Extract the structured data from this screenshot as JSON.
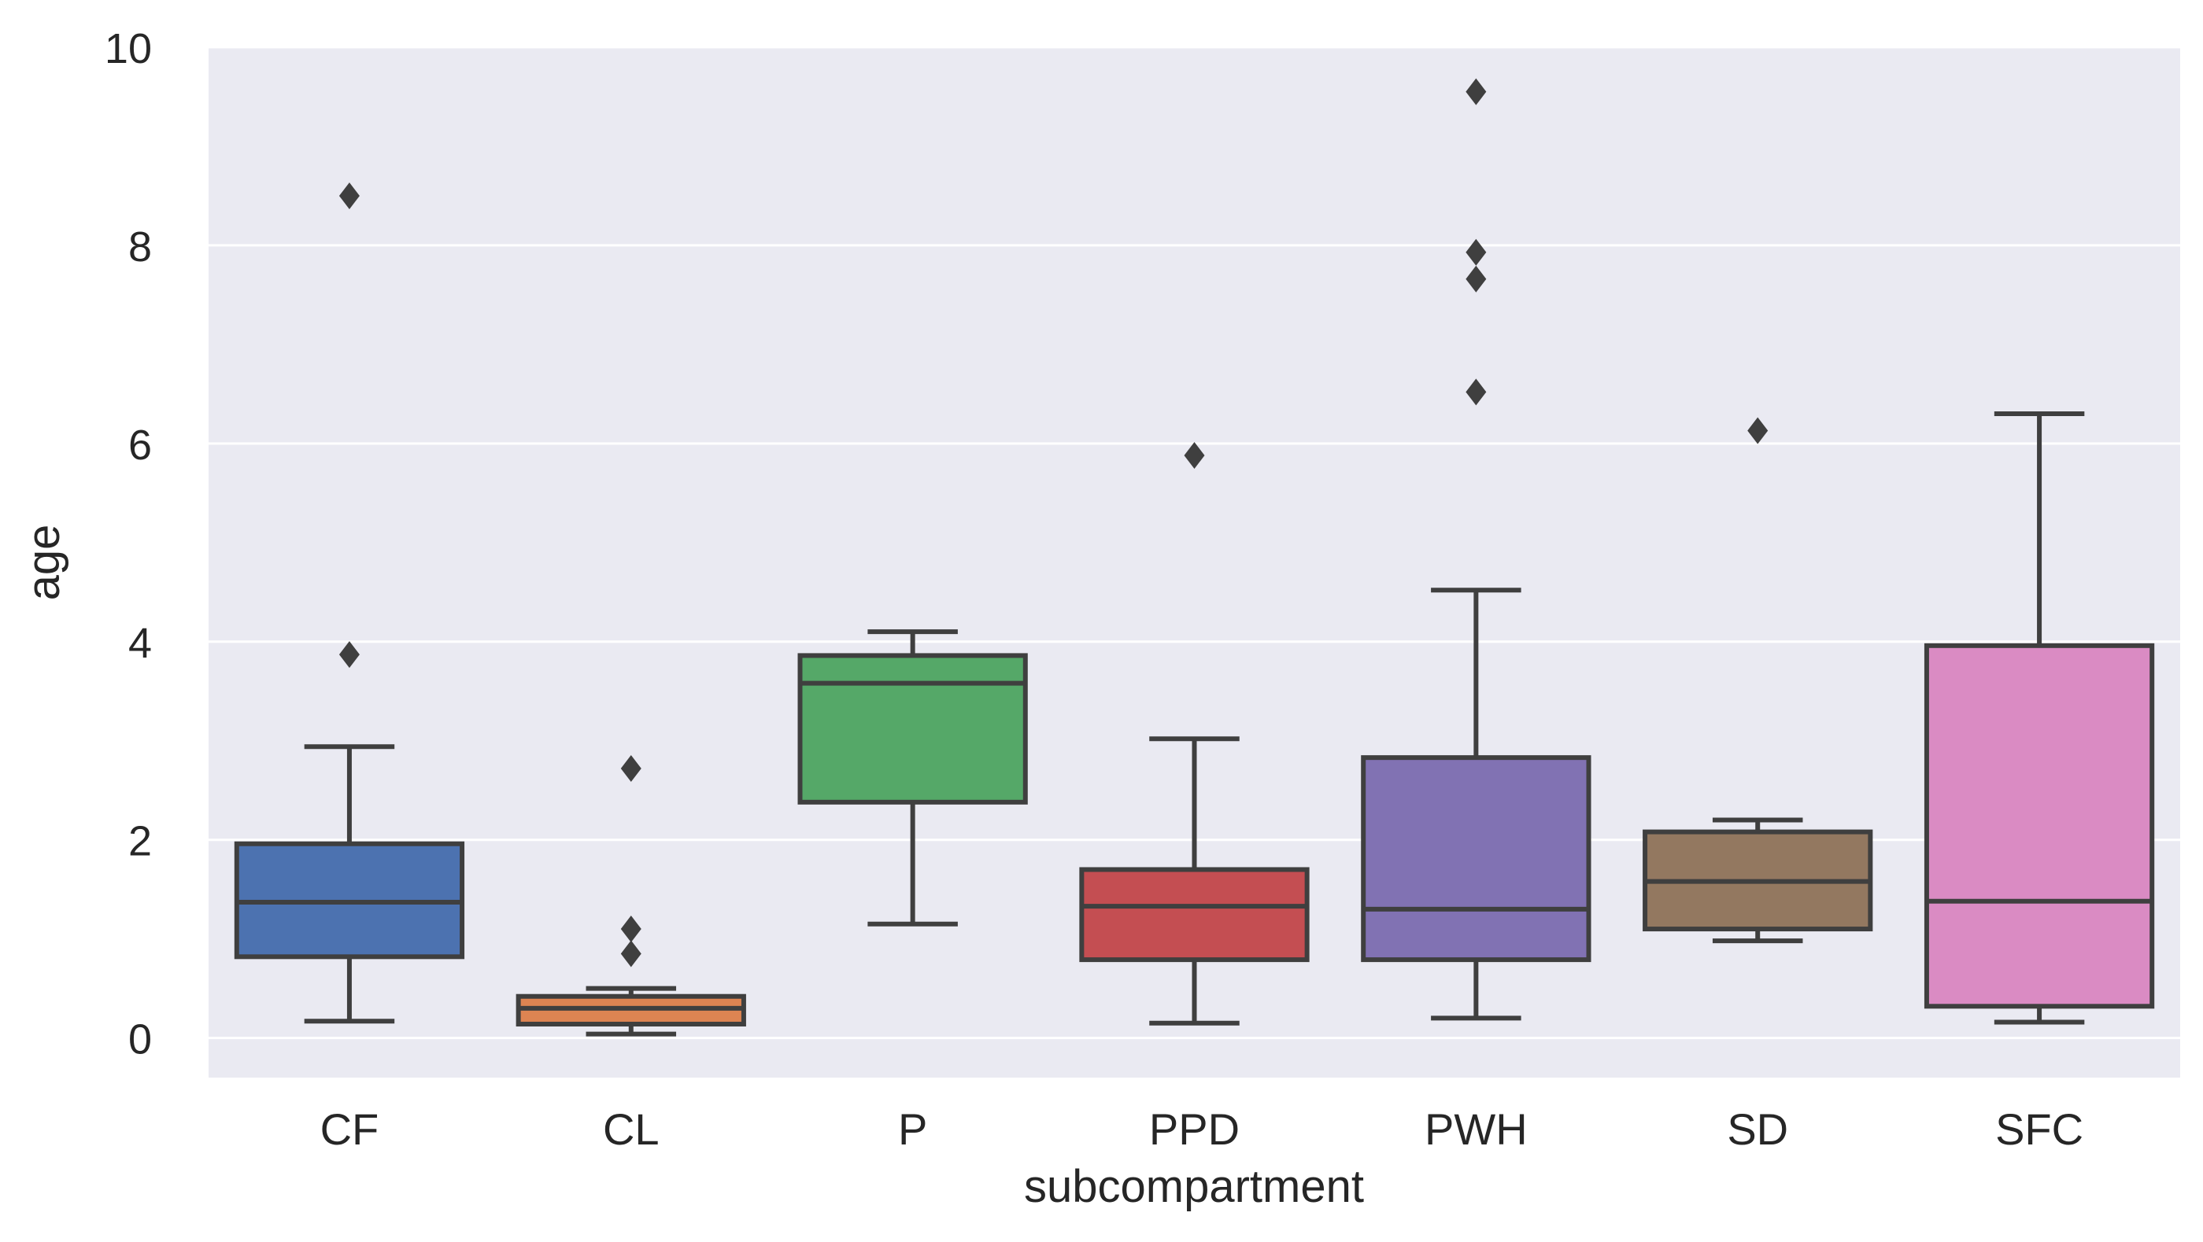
{
  "chart_data": {
    "type": "box",
    "xlabel": "subcompartment",
    "ylabel": "age",
    "ylim": [
      -0.4,
      10
    ],
    "yticks": [
      0,
      2,
      4,
      6,
      8,
      10
    ],
    "grid": true,
    "background_color": "#eaeaf2",
    "grid_color": "#ffffff",
    "line_color": "#3f3f3f",
    "categories": [
      "CF",
      "CL",
      "P",
      "PPD",
      "PWH",
      "SD",
      "SFC"
    ],
    "boxes": [
      {
        "category": "CF",
        "color": "#4c72b0",
        "whisker_low": 0.17,
        "q1": 0.82,
        "median": 1.37,
        "q3": 1.96,
        "whisker_high": 2.94,
        "outliers": [
          3.87,
          8.5
        ]
      },
      {
        "category": "CL",
        "color": "#dd8452",
        "whisker_low": 0.04,
        "q1": 0.14,
        "median": 0.3,
        "q3": 0.42,
        "whisker_high": 0.5,
        "outliers": [
          0.85,
          1.1,
          2.72
        ]
      },
      {
        "category": "P",
        "color": "#55a868",
        "whisker_low": 1.15,
        "q1": 2.38,
        "median": 3.58,
        "q3": 3.86,
        "whisker_high": 4.1,
        "outliers": []
      },
      {
        "category": "PPD",
        "color": "#c44e52",
        "whisker_low": 0.15,
        "q1": 0.79,
        "median": 1.33,
        "q3": 1.7,
        "whisker_high": 3.02,
        "outliers": [
          5.88
        ]
      },
      {
        "category": "PWH",
        "color": "#8172b3",
        "whisker_low": 0.2,
        "q1": 0.79,
        "median": 1.3,
        "q3": 2.83,
        "whisker_high": 4.52,
        "outliers": [
          6.52,
          7.66,
          7.93,
          9.55
        ]
      },
      {
        "category": "SD",
        "color": "#937860",
        "whisker_low": 0.98,
        "q1": 1.1,
        "median": 1.58,
        "q3": 2.08,
        "whisker_high": 2.2,
        "outliers": [
          6.13
        ]
      },
      {
        "category": "SFC",
        "color": "#da8bc3",
        "whisker_low": 0.16,
        "q1": 0.32,
        "median": 1.38,
        "q3": 3.96,
        "whisker_high": 6.3,
        "outliers": []
      }
    ]
  }
}
